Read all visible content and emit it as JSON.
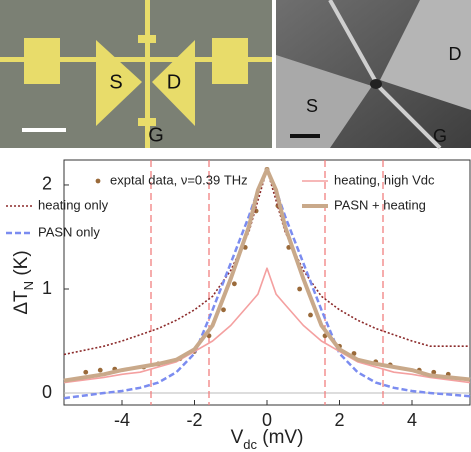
{
  "images": [
    {
      "labels": [
        "S",
        "D",
        "G"
      ]
    },
    {
      "labels": [
        "S",
        "D",
        "G"
      ]
    }
  ],
  "chart_data": {
    "type": "line",
    "xlabel": [
      "V",
      "dc",
      " (mV)"
    ],
    "ylabel": [
      "ΔT",
      "N",
      " (K)"
    ],
    "xlim": [
      -5.6,
      5.6
    ],
    "ylim": [
      -0.115,
      2.24
    ],
    "xticks": [
      -4,
      -2,
      0,
      2,
      4
    ],
    "yticks": [
      0,
      1,
      2
    ],
    "vlines": [
      -3.2,
      -1.6,
      1.6,
      3.2
    ],
    "vline_color": "#f08080",
    "x": [
      -5.6,
      -4.5,
      -4,
      -3.5,
      -3,
      -2.5,
      -2,
      -1.5,
      -1,
      -0.5,
      -0.25,
      0,
      0.25,
      0.5,
      1,
      1.5,
      2,
      2.5,
      3,
      3.5,
      4,
      4.5,
      5.6
    ],
    "series": [
      {
        "name": "exptal data, ν=0.39 THz",
        "color": "#9a6a3a",
        "style": "dots",
        "x": [
          -5,
          -4.6,
          -4.2,
          -3.4,
          -3,
          -2.4,
          -2,
          -1.6,
          -1.2,
          -0.9,
          -0.6,
          -0.3,
          0,
          0.3,
          0.6,
          0.9,
          1.2,
          1.6,
          2,
          2.4,
          3,
          3.4,
          4.2,
          4.6,
          5
        ],
        "values": [
          0.2,
          0.22,
          0.23,
          0.25,
          0.28,
          0.33,
          0.4,
          0.55,
          0.8,
          1.05,
          1.4,
          1.75,
          2.15,
          1.8,
          1.4,
          1.0,
          0.75,
          0.55,
          0.45,
          0.38,
          0.3,
          0.27,
          0.22,
          0.2,
          0.18
        ]
      },
      {
        "name": "heating only",
        "color": "#8b2a2a",
        "style": "dotted",
        "values": [
          0.37,
          0.45,
          0.5,
          0.56,
          0.62,
          0.7,
          0.8,
          0.93,
          1.18,
          1.55,
          1.85,
          2.15,
          1.85,
          1.55,
          1.18,
          0.93,
          0.8,
          0.7,
          0.62,
          0.56,
          0.5,
          0.45,
          0.45
        ]
      },
      {
        "name": "PASN only",
        "color": "#7b8cf0",
        "style": "dashed",
        "values": [
          -0.05,
          0.0,
          0.02,
          0.05,
          0.1,
          0.2,
          0.38,
          0.8,
          1.25,
          1.7,
          1.95,
          2.15,
          1.95,
          1.7,
          1.25,
          0.8,
          0.38,
          0.2,
          0.1,
          0.05,
          0.02,
          0.0,
          -0.03
        ]
      },
      {
        "name": "heating, high Vdc",
        "color": "#f4a0a0",
        "style": "solid",
        "values": [
          0.1,
          0.15,
          0.18,
          0.2,
          0.25,
          0.3,
          0.4,
          0.5,
          0.65,
          0.85,
          0.95,
          1.2,
          0.95,
          0.85,
          0.65,
          0.5,
          0.4,
          0.3,
          0.25,
          0.2,
          0.18,
          0.15,
          0.1
        ]
      },
      {
        "name": "PASN + heating",
        "color": "#c9a98a",
        "style": "thick",
        "values": [
          0.12,
          0.18,
          0.22,
          0.25,
          0.28,
          0.32,
          0.42,
          0.65,
          1.1,
          1.6,
          1.95,
          2.15,
          1.95,
          1.6,
          1.1,
          0.65,
          0.42,
          0.32,
          0.28,
          0.25,
          0.22,
          0.17,
          0.13
        ]
      }
    ]
  }
}
